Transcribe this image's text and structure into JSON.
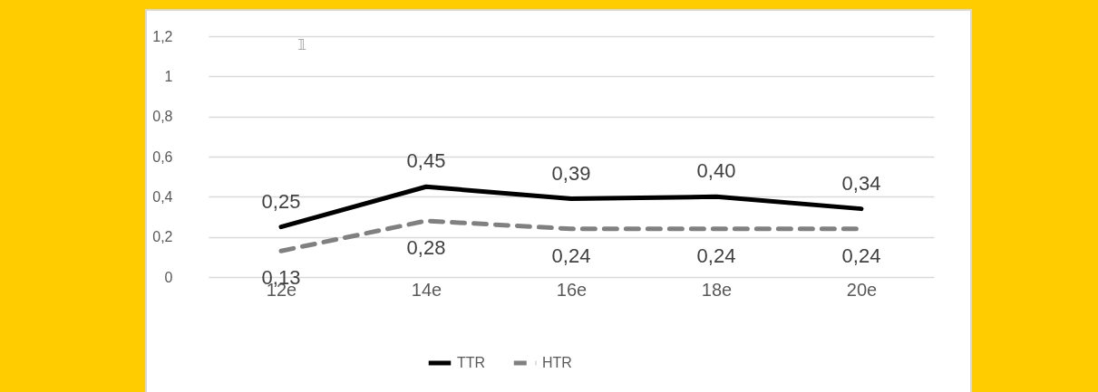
{
  "chart_data": {
    "type": "line",
    "categories": [
      "12e",
      "14e",
      "16e",
      "18e",
      "20e"
    ],
    "series": [
      {
        "name": "TTR",
        "color": "#000000",
        "line_style": "solid",
        "values": [
          0.25,
          0.45,
          0.39,
          0.4,
          0.34
        ],
        "value_labels": [
          "0,25",
          "0,45",
          "0,39",
          "0,40",
          "0,34"
        ]
      },
      {
        "name": "HTR",
        "color": "#808080",
        "line_style": "dashed",
        "values": [
          0.13,
          0.28,
          0.24,
          0.24,
          0.24
        ],
        "value_labels": [
          "0,13",
          "0,28",
          "0,24",
          "0,24",
          "0,24"
        ]
      }
    ],
    "ylim": [
      0,
      1.2
    ],
    "yticks": [
      0,
      {
        "value": 0.2,
        "label": "0,2"
      },
      {
        "value": 0.4,
        "label": "0,4"
      },
      {
        "value": 0.6,
        "label": "0,6"
      },
      {
        "value": 0.8,
        "label": "0,8"
      },
      1,
      {
        "value": 1.2,
        "label": "1,2"
      }
    ],
    "grid": "y",
    "legend": "bottom",
    "marker": "none",
    "annotations": [
      "𝟙"
    ]
  }
}
